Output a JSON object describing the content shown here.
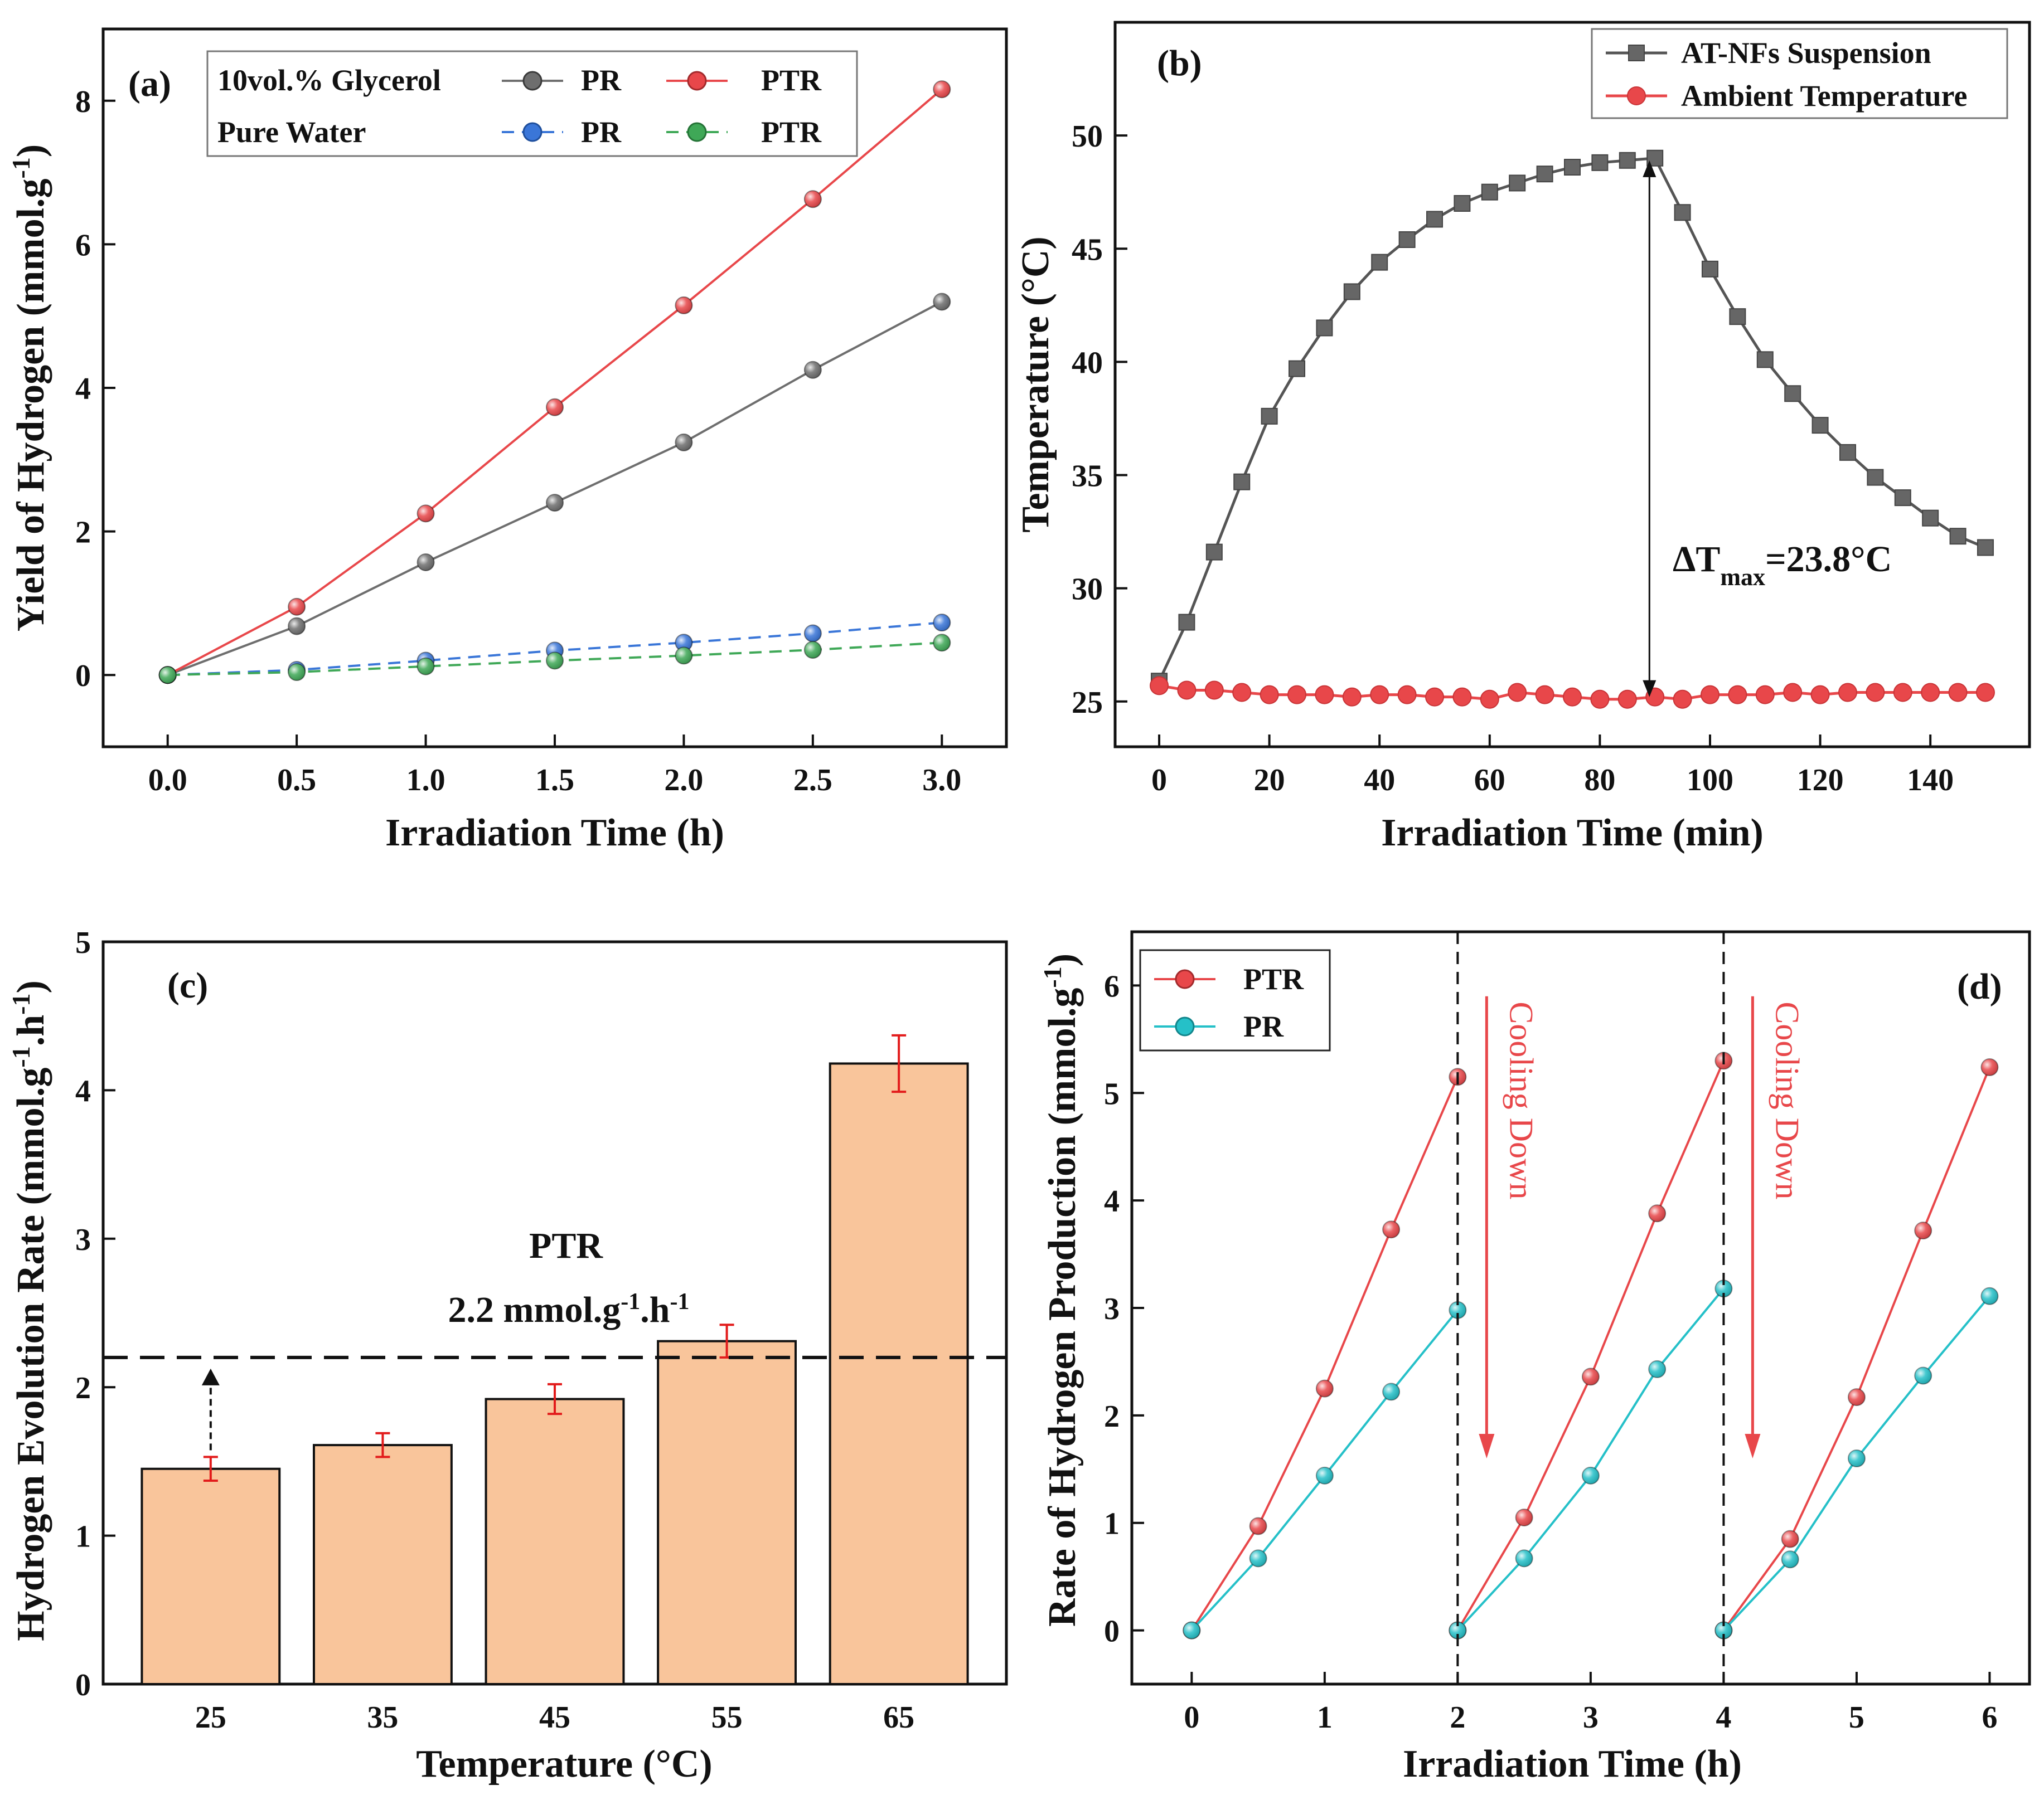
{
  "chart_data": [
    {
      "id": "a",
      "type": "line",
      "panel_label": "(a)",
      "xlabel": "Irradiation Time (h)",
      "ylabel": "Yield of Hydrogen (mmol.g-1)",
      "ylabel_main": "Yield of Hydrogen (mmol.g",
      "ylabel_sup": "-1",
      "ylabel_end": ")",
      "xlim": [
        -0.25,
        3.25
      ],
      "ylim": [
        -1,
        9
      ],
      "xticks": [
        0.0,
        0.5,
        1.0,
        1.5,
        2.0,
        2.5,
        3.0
      ],
      "xtick_labels": [
        "0.0",
        "0.5",
        "1.0",
        "1.5",
        "2.0",
        "2.5",
        "3.0"
      ],
      "yticks": [
        0,
        2,
        4,
        6,
        8
      ],
      "ytick_labels": [
        "0",
        "2",
        "4",
        "6",
        "8"
      ],
      "x": [
        0,
        0.5,
        1.0,
        1.5,
        2.0,
        2.5,
        3.0
      ],
      "legend_rows": [
        "10vol.% Glycerol",
        "Pure Water"
      ],
      "series": [
        {
          "name": "PR",
          "group": "10vol.% Glycerol",
          "color": "#6e6e6e",
          "dashed": false,
          "values": [
            0,
            0.68,
            1.57,
            2.4,
            3.24,
            4.25,
            5.2
          ]
        },
        {
          "name": "PTR",
          "group": "10vol.% Glycerol",
          "color": "#e8474a",
          "dashed": false,
          "values": [
            0,
            0.95,
            2.25,
            3.73,
            5.15,
            6.63,
            8.16
          ]
        },
        {
          "name": "PR",
          "group": "Pure Water",
          "color": "#3a76d8",
          "dashed": true,
          "values": [
            0,
            0.07,
            0.2,
            0.34,
            0.45,
            0.58,
            0.73
          ]
        },
        {
          "name": "PTR",
          "group": "Pure Water",
          "color": "#3fa857",
          "dashed": true,
          "values": [
            0,
            0.04,
            0.12,
            0.2,
            0.27,
            0.35,
            0.45
          ]
        }
      ]
    },
    {
      "id": "b",
      "type": "line",
      "panel_label": "(b)",
      "xlabel": "Irradiation Time (min)",
      "ylabel": "Temperature (°C)",
      "xlim": [
        -8,
        158
      ],
      "ylim": [
        23,
        55
      ],
      "xticks": [
        0,
        20,
        40,
        60,
        80,
        100,
        120,
        140
      ],
      "xtick_labels": [
        "0",
        "20",
        "40",
        "60",
        "80",
        "100",
        "120",
        "140"
      ],
      "yticks": [
        25,
        30,
        35,
        40,
        45,
        50
      ],
      "ytick_labels": [
        "25",
        "30",
        "35",
        "40",
        "45",
        "50"
      ],
      "series": [
        {
          "name": "AT-NFs Suspension",
          "color": "#555555",
          "marker": "square",
          "x": [
            0,
            5,
            10,
            15,
            20,
            25,
            30,
            35,
            40,
            45,
            50,
            55,
            60,
            65,
            70,
            75,
            80,
            85,
            90,
            95,
            100,
            105,
            110,
            115,
            120,
            125,
            130,
            135,
            140,
            145,
            150
          ],
          "values": [
            25.9,
            28.5,
            31.6,
            34.7,
            37.6,
            39.7,
            41.5,
            43.1,
            44.4,
            45.4,
            46.3,
            47.0,
            47.5,
            47.9,
            48.3,
            48.6,
            48.8,
            48.9,
            49.0,
            46.6,
            44.1,
            42.0,
            40.1,
            38.6,
            37.2,
            36.0,
            34.9,
            34.0,
            33.1,
            32.3,
            31.8
          ]
        },
        {
          "name": "Ambient Temperature",
          "color": "#e8474a",
          "marker": "circle",
          "x": [
            0,
            5,
            10,
            15,
            20,
            25,
            30,
            35,
            40,
            45,
            50,
            55,
            60,
            65,
            70,
            75,
            80,
            85,
            90,
            95,
            100,
            105,
            110,
            115,
            120,
            125,
            130,
            135,
            140,
            145,
            150
          ],
          "values": [
            25.7,
            25.5,
            25.5,
            25.4,
            25.3,
            25.3,
            25.3,
            25.2,
            25.3,
            25.3,
            25.2,
            25.2,
            25.1,
            25.4,
            25.3,
            25.2,
            25.1,
            25.1,
            25.2,
            25.1,
            25.3,
            25.3,
            25.3,
            25.4,
            25.3,
            25.4,
            25.4,
            25.4,
            25.4,
            25.4,
            25.4
          ]
        }
      ],
      "annotation": {
        "text_main": "ΔT",
        "text_sub": "max",
        "text_end": "=23.8°C",
        "arrow_x": 89,
        "arrow_from": 25.2,
        "arrow_to": 48.9
      }
    },
    {
      "id": "c",
      "type": "bar",
      "panel_label": "(c)",
      "xlabel": "Temperature (°C)",
      "ylabel": "Hydrogen Evolution Rate (mmol.g-1.h-1)",
      "ylabel_main": "Hydrogen Evolution Rate (mmol.g",
      "ylabel_sup1": "-1",
      "ylabel_mid": ".h",
      "ylabel_sup2": "-1",
      "ylabel_end": ")",
      "categories": [
        "25",
        "35",
        "45",
        "55",
        "65"
      ],
      "values": [
        1.45,
        1.61,
        1.92,
        2.31,
        4.18
      ],
      "errors": [
        0.08,
        0.08,
        0.1,
        0.11,
        0.19
      ],
      "bar_color": "#f9c59b",
      "error_color": "#e21b1b",
      "ylim": [
        0,
        5
      ],
      "yticks": [
        0,
        1,
        2,
        3,
        4,
        5
      ],
      "ytick_labels": [
        "0",
        "1",
        "2",
        "3",
        "4",
        "5"
      ],
      "reference_line": 2.2,
      "reference_title": "PTR",
      "reference_value_main": "2.2 mmol.g",
      "reference_sup1": "-1",
      "reference_mid": ".h",
      "reference_sup2": "-1"
    },
    {
      "id": "d",
      "type": "line",
      "panel_label": "(d)",
      "xlabel": "Irradiation Time (h)",
      "ylabel": "Rate of Hydrogen Production (mmol.g-1)",
      "ylabel_main": "Rate of Hydrogen Production (mmol.g",
      "ylabel_sup": "-1",
      "ylabel_end": ")",
      "xlim": [
        -0.45,
        6.3
      ],
      "ylim": [
        -0.5,
        6.5
      ],
      "xticks": [
        0,
        1,
        2,
        3,
        4,
        5,
        6
      ],
      "xtick_labels": [
        "0",
        "1",
        "2",
        "3",
        "4",
        "5",
        "6"
      ],
      "yticks": [
        0,
        1,
        2,
        3,
        4,
        5,
        6
      ],
      "ytick_labels": [
        "0",
        "1",
        "2",
        "3",
        "4",
        "5",
        "6"
      ],
      "cycle_lines": [
        2,
        4
      ],
      "cooling_text": "Cooling Down",
      "series": [
        {
          "name": "PTR",
          "color": "#e8474a",
          "segments": [
            {
              "x": [
                0,
                0.5,
                1.0,
                1.5,
                2.0
              ],
              "values": [
                0,
                0.97,
                2.25,
                3.73,
                5.15
              ]
            },
            {
              "x": [
                2.0,
                2.5,
                3.0,
                3.5,
                4.0
              ],
              "values": [
                0,
                1.05,
                2.36,
                3.88,
                5.3
              ]
            },
            {
              "x": [
                4.0,
                4.5,
                5.0,
                5.5,
                6.0
              ],
              "values": [
                0,
                0.85,
                2.17,
                3.72,
                5.24
              ]
            }
          ]
        },
        {
          "name": "PR",
          "color": "#25c0c8",
          "segments": [
            {
              "x": [
                0,
                0.5,
                1.0,
                1.5,
                2.0
              ],
              "values": [
                0,
                0.67,
                1.44,
                2.22,
                2.98
              ]
            },
            {
              "x": [
                2.0,
                2.5,
                3.0,
                3.5,
                4.0
              ],
              "values": [
                0,
                0.67,
                1.44,
                2.43,
                3.18
              ]
            },
            {
              "x": [
                4.0,
                4.5,
                5.0,
                5.5,
                6.0
              ],
              "values": [
                0,
                0.66,
                1.6,
                2.37,
                3.11
              ]
            }
          ]
        }
      ]
    }
  ]
}
